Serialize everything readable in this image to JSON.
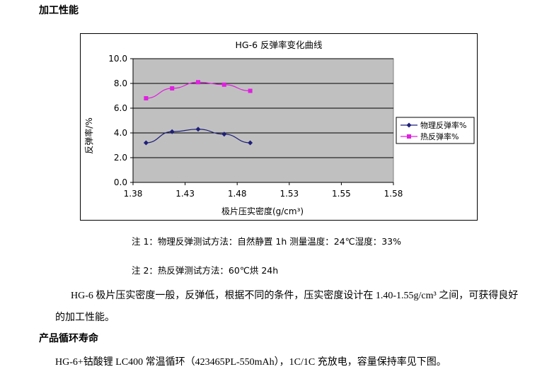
{
  "doc": {
    "heading1": "加工性能",
    "note1": "注 1：物理反弹测试方法：自然静置 1h 测量温度：24℃湿度：33%",
    "note2": "注 2：热反弹测试方法：60℃烘 24h",
    "para1_line1": "HG-6 极片压实密度一般，反弹低，根据不同的条件，压实密度设计在 1.40-1.55g/cm³ 之间，可获得良好",
    "para1_line2": "的加工性能。",
    "heading2": "产品循环寿命",
    "para2": "HG-6+钴酸锂 LC400 常温循环（423465PL-550mAh），1C/1C 充放电，容量保持率见下图。"
  },
  "chart_data": {
    "type": "line",
    "title": "HG-6 反弹率变化曲线",
    "xlabel": "极片压实密度(g/cm³)",
    "ylabel": "反弹率/%",
    "xlim": [
      1.38,
      1.58
    ],
    "ylim": [
      0.0,
      10.0
    ],
    "x_ticks": [
      "1.38",
      "1.43",
      "1.48",
      "1.53",
      "1.55",
      "1.58"
    ],
    "y_ticks": [
      "0.0",
      "2.0",
      "4.0",
      "6.0",
      "8.0",
      "10.0"
    ],
    "grid": true,
    "legend_position": "right",
    "series": [
      {
        "name": "物理反弹率%",
        "color": "#1f1f7a",
        "marker": "diamond",
        "x": [
          1.39,
          1.41,
          1.43,
          1.45,
          1.47
        ],
        "values": [
          3.2,
          4.1,
          4.3,
          3.9,
          3.2
        ]
      },
      {
        "name": "热反弹率%",
        "color": "#e020e0",
        "marker": "square",
        "x": [
          1.39,
          1.41,
          1.43,
          1.45,
          1.47
        ],
        "values": [
          6.8,
          7.6,
          8.1,
          7.9,
          7.4
        ]
      }
    ]
  }
}
